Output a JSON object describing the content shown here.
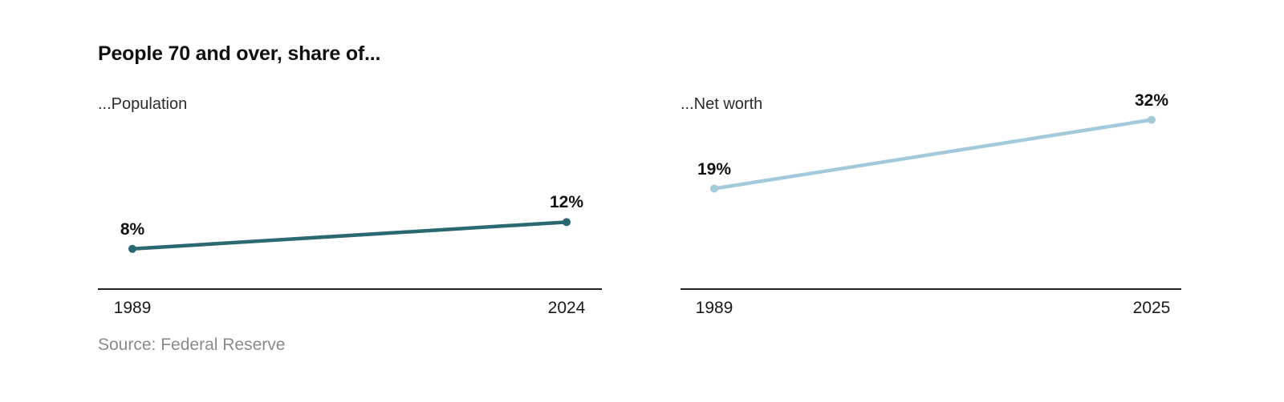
{
  "title": "People 70 and over, share of...",
  "source": "Source: Federal Reserve",
  "colors": {
    "population_line": "#2a6872",
    "net_worth_line": "#a3cadb",
    "axis": "#222222",
    "title_text": "#111111",
    "source_text": "#8a8a8a",
    "background": "#ffffff"
  },
  "chart_data": [
    {
      "type": "line",
      "title": "...Population",
      "x": [
        1989,
        2024
      ],
      "categories": [
        "1989",
        "2024"
      ],
      "values": [
        8,
        12
      ],
      "point_labels": [
        "8%",
        "12%"
      ],
      "unit": "%",
      "ylim": [
        2,
        32
      ],
      "xlabel": "",
      "ylabel": "",
      "grid": false,
      "legend": "none",
      "line_color": "#2a6872"
    },
    {
      "type": "line",
      "title": "...Net worth",
      "x": [
        1989,
        2025
      ],
      "categories": [
        "1989",
        "2025"
      ],
      "values": [
        19,
        32
      ],
      "point_labels": [
        "19%",
        "32%"
      ],
      "unit": "%",
      "ylim": [
        0,
        38
      ],
      "xlabel": "",
      "ylabel": "",
      "grid": false,
      "legend": "none",
      "line_color": "#a3cadb"
    }
  ]
}
